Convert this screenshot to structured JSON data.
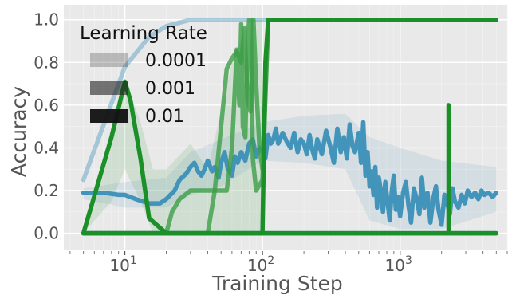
{
  "chart_data": {
    "type": "line",
    "xlabel": "Training Step",
    "ylabel": "Accuracy",
    "xscale": "log",
    "xlim": [
      3.6,
      6000
    ],
    "ylim": [
      -0.08,
      1.07
    ],
    "grid": true,
    "x_ticks": [
      {
        "value": 10,
        "base": "10",
        "exp": "1"
      },
      {
        "value": 100,
        "base": "10",
        "exp": "2"
      },
      {
        "value": 1000,
        "base": "10",
        "exp": "3"
      }
    ],
    "y_ticks": [
      {
        "value": 0.0,
        "label": "0.0"
      },
      {
        "value": 0.2,
        "label": "0.2"
      },
      {
        "value": 0.4,
        "label": "0.4"
      },
      {
        "value": 0.6,
        "label": "0.6"
      },
      {
        "value": 0.8,
        "label": "0.8"
      },
      {
        "value": 1.0,
        "label": "1.0"
      }
    ],
    "legend": {
      "title": "Learning Rate",
      "placement": "top-left",
      "entries": [
        {
          "label": "0.0001",
          "opacity": 0.25
        },
        {
          "label": "0.001",
          "opacity": 0.6
        },
        {
          "label": "0.01",
          "opacity": 0.95
        }
      ]
    },
    "series": [
      {
        "color": "#3a8fb7",
        "learning_rate": "0.0001",
        "opacity": 0.4,
        "x": [
          5,
          10,
          15,
          20,
          30,
          40,
          50,
          70,
          100,
          150,
          200
        ],
        "y": [
          0.25,
          0.78,
          0.92,
          0.97,
          1.0,
          1.0,
          1.0,
          1.0,
          1.0,
          1.0,
          1.0
        ]
      },
      {
        "color": "#3a8fb7",
        "learning_rate": "0.0001",
        "opacity": 0.4,
        "x": [
          5,
          8,
          10,
          12,
          15,
          20,
          30,
          40,
          50,
          70,
          100,
          200,
          500,
          1000,
          2000,
          5000
        ],
        "y": [
          0.0,
          0.0,
          0.0,
          0.0,
          0.0,
          0.0,
          0.0,
          0.0,
          0.0,
          0.0,
          0.0,
          0.0,
          0.0,
          0.0,
          0.0,
          0.0
        ]
      },
      {
        "color": "#3a8fb7",
        "learning_rate": "0.001",
        "opacity": 0.95,
        "x": [
          5,
          7,
          9,
          10,
          12,
          15,
          18,
          20,
          23,
          25,
          28,
          30,
          32,
          34,
          36,
          38,
          40,
          43,
          45,
          48,
          50,
          53,
          56,
          60,
          63,
          66,
          70,
          75,
          80,
          85,
          90,
          95,
          100,
          105,
          110,
          115,
          120,
          125,
          130,
          140,
          150,
          160,
          170,
          180,
          190,
          200,
          210,
          220,
          230,
          240,
          250,
          270,
          290,
          310,
          330,
          350,
          370,
          390,
          410,
          430,
          450,
          470,
          500,
          520,
          540,
          560,
          580,
          600,
          620,
          640,
          660,
          680,
          700,
          720,
          750,
          780,
          810,
          840,
          870,
          900,
          930,
          960,
          1000,
          1050,
          1100,
          1150,
          1200,
          1260,
          1320,
          1380,
          1440,
          1500,
          1580,
          1660,
          1740,
          1820,
          1900,
          2000,
          2100,
          2200,
          2300,
          2400,
          2500,
          2650,
          2800,
          2950,
          3100,
          3300,
          3500,
          3700,
          3900,
          4100,
          4400,
          4700,
          5000
        ],
        "y": [
          0.19,
          0.19,
          0.18,
          0.18,
          0.16,
          0.14,
          0.14,
          0.16,
          0.2,
          0.25,
          0.28,
          0.31,
          0.33,
          0.29,
          0.27,
          0.3,
          0.34,
          0.29,
          0.31,
          0.26,
          0.33,
          0.38,
          0.3,
          0.27,
          0.36,
          0.33,
          0.38,
          0.34,
          0.42,
          0.44,
          0.36,
          0.4,
          0.38,
          0.35,
          0.46,
          0.42,
          0.44,
          0.49,
          0.42,
          0.47,
          0.43,
          0.4,
          0.47,
          0.38,
          0.44,
          0.42,
          0.37,
          0.46,
          0.39,
          0.35,
          0.44,
          0.37,
          0.48,
          0.41,
          0.33,
          0.49,
          0.38,
          0.45,
          0.35,
          0.51,
          0.41,
          0.38,
          0.47,
          0.33,
          0.52,
          0.27,
          0.38,
          0.22,
          0.29,
          0.18,
          0.31,
          0.12,
          0.26,
          0.21,
          0.1,
          0.24,
          0.15,
          0.06,
          0.2,
          0.27,
          0.11,
          0.17,
          0.08,
          0.19,
          0.24,
          0.13,
          0.05,
          0.21,
          0.16,
          0.09,
          0.26,
          0.12,
          0.19,
          0.05,
          0.16,
          0.22,
          0.11,
          0.04,
          0.18,
          0.14,
          0.09,
          0.21,
          0.15,
          0.12,
          0.18,
          0.14,
          0.2,
          0.17,
          0.19,
          0.16,
          0.2,
          0.18,
          0.19,
          0.17,
          0.19
        ]
      },
      {
        "color": "#3a8fb7",
        "learning_rate": "0.001",
        "opacity": 0.95,
        "x": [
          5,
          8,
          10,
          12,
          15,
          20,
          30,
          40,
          50,
          70,
          100,
          200,
          500,
          1000,
          2000,
          5000
        ],
        "y": [
          0.0,
          0.0,
          0.0,
          0.0,
          0.0,
          0.0,
          0.0,
          0.0,
          0.0,
          0.0,
          0.0,
          0.0,
          0.0,
          0.0,
          0.0,
          0.0
        ]
      },
      {
        "color": "#3c9d47",
        "learning_rate": "0.001",
        "opacity": 0.8,
        "x": [
          5,
          10,
          20,
          30,
          40,
          45,
          50,
          55,
          60,
          65,
          70,
          74,
          78,
          82,
          86,
          90,
          95,
          100,
          110,
          130,
          200,
          500,
          1000,
          2000,
          5000
        ],
        "y": [
          0.0,
          0.0,
          0.0,
          0.0,
          0.0,
          0.2,
          0.5,
          0.77,
          0.82,
          0.85,
          0.8,
          0.96,
          0.62,
          0.57,
          1.0,
          0.7,
          0.4,
          0.3,
          1.0,
          1.0,
          1.0,
          1.0,
          1.0,
          1.0,
          1.0
        ]
      },
      {
        "color": "#3c9d47",
        "learning_rate": "0.001",
        "opacity": 0.8,
        "x": [
          5,
          10,
          15,
          20,
          22,
          25,
          30,
          35,
          38,
          40,
          45,
          50,
          55,
          60,
          65,
          68,
          70,
          72,
          75,
          78,
          80,
          82,
          85,
          90,
          100,
          110,
          130,
          200,
          500,
          1000,
          2000,
          5000
        ],
        "y": [
          0.0,
          0.0,
          0.0,
          0.0,
          0.1,
          0.16,
          0.2,
          0.2,
          0.2,
          0.2,
          0.2,
          0.2,
          0.2,
          0.4,
          0.86,
          0.6,
          0.98,
          0.5,
          0.45,
          0.9,
          1.0,
          1.0,
          0.35,
          0.2,
          0.25,
          1.0,
          1.0,
          1.0,
          1.0,
          1.0,
          1.0,
          1.0
        ]
      },
      {
        "color": "#1b8f28",
        "learning_rate": "0.01",
        "opacity": 1.0,
        "x": [
          5,
          8,
          10,
          11,
          13,
          15,
          20,
          25,
          30,
          50,
          100,
          300,
          1000,
          2000,
          2250,
          2250,
          2250,
          2300,
          3000,
          5000
        ],
        "y": [
          0.0,
          0.45,
          0.71,
          0.62,
          0.35,
          0.07,
          0.0,
          0.0,
          0.0,
          0.0,
          0.0,
          0.0,
          0.0,
          0.0,
          0.0,
          0.6,
          0.0,
          0.0,
          0.0,
          0.0
        ]
      },
      {
        "color": "#1b8f28",
        "learning_rate": "0.01",
        "opacity": 1.0,
        "x": [
          5,
          10,
          20,
          40,
          60,
          80,
          100,
          105,
          110,
          120,
          200,
          500,
          1000,
          2000,
          5000
        ],
        "y": [
          0.0,
          0.0,
          0.0,
          0.0,
          0.0,
          0.0,
          0.0,
          0.8,
          1.0,
          1.0,
          1.0,
          1.0,
          1.0,
          1.0,
          1.0
        ]
      }
    ],
    "bands": [
      {
        "color": "#3a8fb7",
        "opacity": 0.12,
        "x": [
          5,
          10,
          20,
          30,
          50,
          100,
          200,
          400,
          600,
          1000,
          2000,
          5000
        ],
        "lower": [
          0.16,
          0.12,
          0.12,
          0.18,
          0.22,
          0.34,
          0.33,
          0.3,
          0.06,
          0.02,
          0.02,
          0.1
        ],
        "upper": [
          0.21,
          0.24,
          0.26,
          0.38,
          0.44,
          0.52,
          0.55,
          0.56,
          0.45,
          0.4,
          0.34,
          0.31
        ]
      },
      {
        "color": "#3c9d47",
        "opacity": 0.14,
        "x": [
          5,
          8,
          10,
          13,
          16,
          20,
          30,
          40,
          60,
          80,
          100
        ],
        "lower": [
          0.0,
          0.15,
          0.3,
          0.15,
          0.0,
          0.0,
          0.0,
          0.0,
          0.0,
          0.0,
          0.0
        ],
        "upper": [
          0.0,
          0.5,
          0.72,
          0.52,
          0.3,
          0.3,
          0.42,
          0.3,
          0.8,
          1.0,
          1.0
        ]
      }
    ]
  }
}
